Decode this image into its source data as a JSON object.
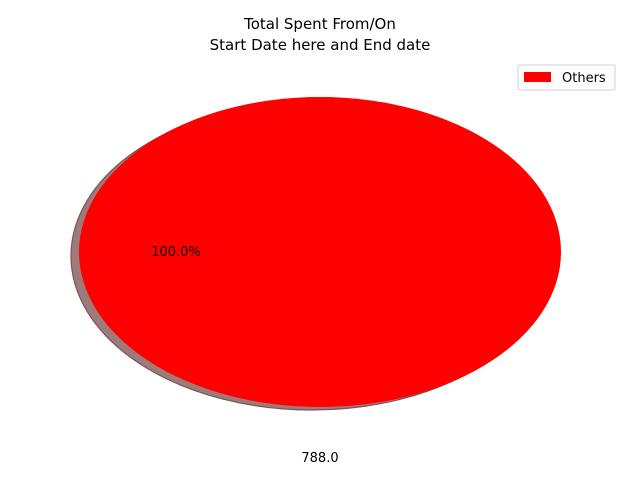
{
  "chart_data": {
    "type": "pie",
    "title_line1": "Total Spent From/On",
    "title_line2": "Start Date here and End date",
    "slices": [
      {
        "label": "Others",
        "value": 788.0,
        "percent": 100.0,
        "color": "#ff0000"
      }
    ],
    "pct_label": "100.0%",
    "value_label": "788.0",
    "shadow": true,
    "shadow_color": "#9e7b7b",
    "legend": {
      "placement": "top-right",
      "entries": [
        "Others"
      ]
    }
  }
}
